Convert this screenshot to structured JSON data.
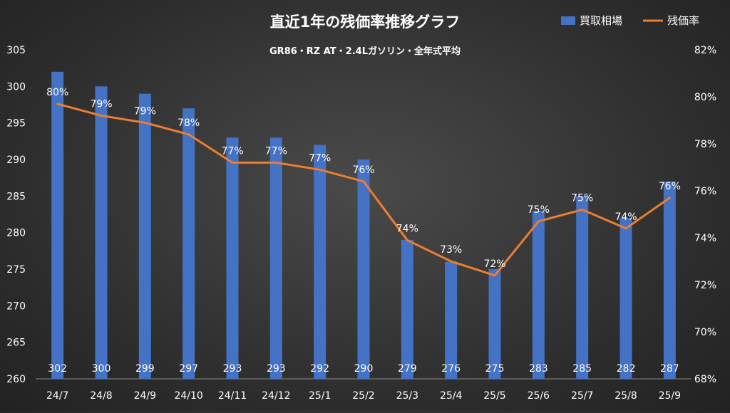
{
  "chart_data": {
    "type": "bar+line",
    "title": "直近1年の残価率推移グラフ",
    "subtitle": "GR86・RZ AT・2.4Lガソリン・全年式平均",
    "categories": [
      "24/7",
      "24/8",
      "24/9",
      "24/10",
      "24/11",
      "24/12",
      "25/1",
      "25/2",
      "25/3",
      "25/4",
      "25/5",
      "25/6",
      "25/7",
      "25/8",
      "25/9"
    ],
    "series": [
      {
        "name": "買取相場",
        "type": "bar",
        "axis": "left",
        "color": "#4472C4",
        "values": [
          302,
          300,
          299,
          297,
          293,
          293,
          292,
          290,
          279,
          276,
          275,
          283,
          285,
          282,
          287
        ],
        "labels": [
          "302",
          "300",
          "299",
          "297",
          "293",
          "293",
          "292",
          "290",
          "279",
          "276",
          "275",
          "283",
          "285",
          "282",
          "287"
        ]
      },
      {
        "name": "残価率",
        "type": "line",
        "axis": "right",
        "color": "#ED7D31",
        "values": [
          79.7,
          79.2,
          78.9,
          78.4,
          77.2,
          77.2,
          76.9,
          76.4,
          73.9,
          73.0,
          72.4,
          74.7,
          75.2,
          74.4,
          75.7
        ],
        "labels": [
          "80%",
          "79%",
          "79%",
          "78%",
          "77%",
          "77%",
          "77%",
          "76%",
          "74%",
          "73%",
          "72%",
          "75%",
          "75%",
          "74%",
          "76%"
        ]
      }
    ],
    "left_axis": {
      "min": 260,
      "max": 305,
      "step": 5,
      "ticks": [
        "260",
        "265",
        "270",
        "275",
        "280",
        "285",
        "290",
        "295",
        "300",
        "305"
      ]
    },
    "right_axis": {
      "min": 68,
      "max": 82,
      "step": 2,
      "ticks": [
        "68%",
        "70%",
        "72%",
        "74%",
        "76%",
        "78%",
        "80%",
        "82%"
      ]
    },
    "legend_position": "top-right",
    "grid": false
  }
}
